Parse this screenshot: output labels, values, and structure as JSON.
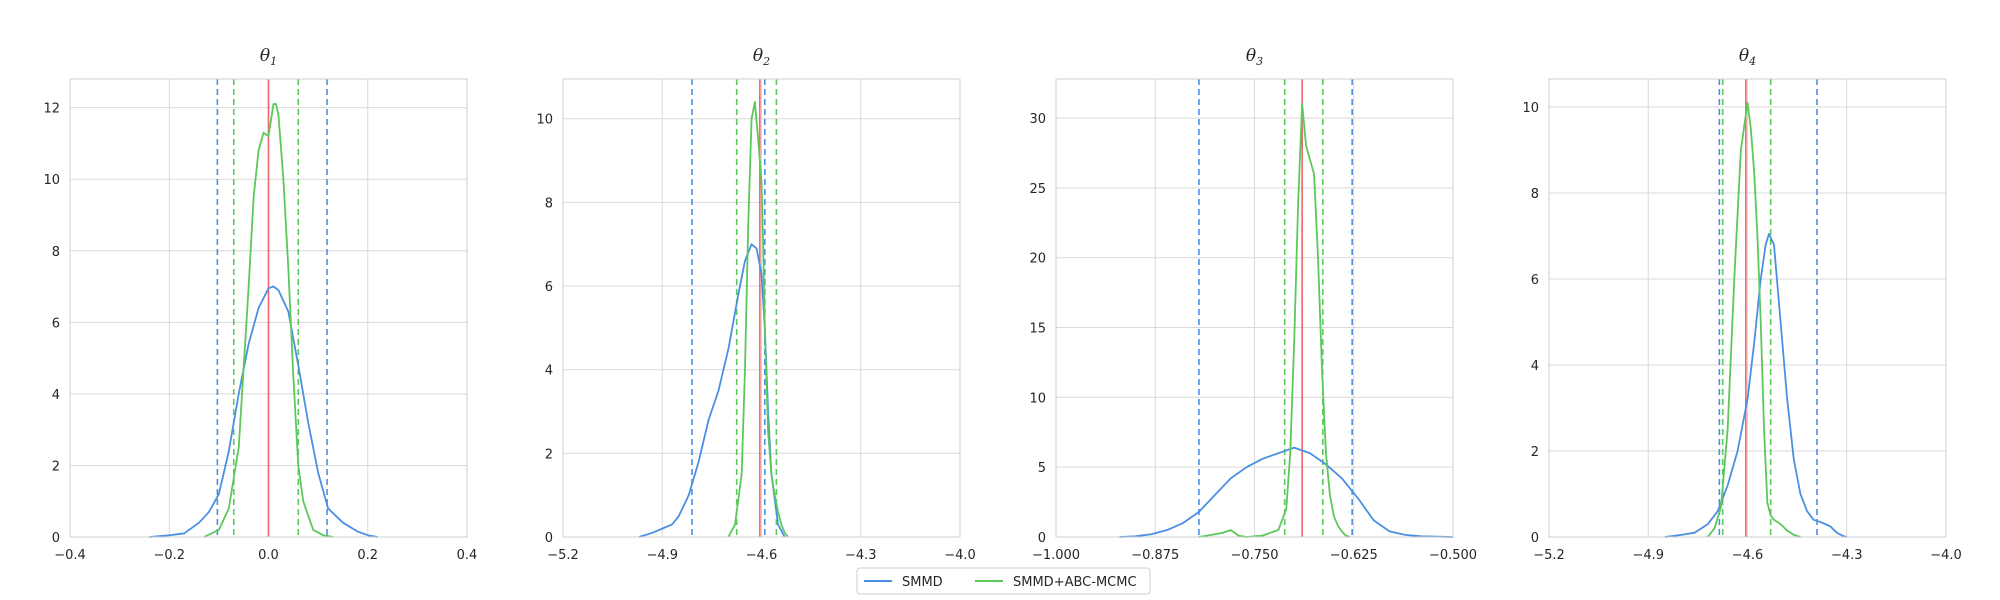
{
  "chart_data": [
    {
      "type": "line",
      "title": "θ1",
      "title_base": "θ",
      "title_sub": "1",
      "xlim": [
        -0.4,
        0.4
      ],
      "ylim": [
        0,
        12.8
      ],
      "xticks": [
        -0.4,
        -0.2,
        0.0,
        0.2,
        0.4
      ],
      "xtick_labels": [
        "−0.4",
        "−0.2",
        "0.0",
        "0.2",
        "0.4"
      ],
      "yticks": [
        0,
        2,
        4,
        6,
        8,
        10,
        12
      ],
      "ytick_labels": [
        "0",
        "2",
        "4",
        "6",
        "8",
        "10",
        "12"
      ],
      "grid": true,
      "series": [
        {
          "name": "SMMD",
          "color": "#4a90e2",
          "x": [
            -0.24,
            -0.2,
            -0.17,
            -0.14,
            -0.12,
            -0.1,
            -0.08,
            -0.06,
            -0.04,
            -0.02,
            0.0,
            0.01,
            0.02,
            0.04,
            0.06,
            0.08,
            0.1,
            0.12,
            0.15,
            0.18,
            0.2,
            0.22
          ],
          "y": [
            0.0,
            0.05,
            0.1,
            0.4,
            0.7,
            1.2,
            2.4,
            4.0,
            5.4,
            6.4,
            6.95,
            7.0,
            6.9,
            6.3,
            4.8,
            3.2,
            1.8,
            0.8,
            0.4,
            0.15,
            0.05,
            0.0
          ]
        },
        {
          "name": "SMMD+ABC-MCMC",
          "color": "#5cc85c",
          "x": [
            -0.13,
            -0.1,
            -0.08,
            -0.06,
            -0.04,
            -0.03,
            -0.02,
            -0.01,
            0.0,
            0.01,
            0.015,
            0.02,
            0.03,
            0.04,
            0.05,
            0.06,
            0.07,
            0.09,
            0.11,
            0.13
          ],
          "y": [
            0.0,
            0.2,
            0.8,
            2.5,
            7.0,
            9.5,
            10.8,
            11.3,
            11.2,
            12.1,
            12.1,
            11.8,
            10.0,
            7.5,
            4.5,
            2.0,
            1.0,
            0.2,
            0.05,
            0.0
          ]
        }
      ],
      "vlines": [
        {
          "x": 0.0,
          "color": "#f0656c",
          "style": "solid"
        },
        {
          "x": -0.103,
          "color": "#4a90e2",
          "style": "dashed"
        },
        {
          "x": 0.118,
          "color": "#4a90e2",
          "style": "dashed"
        },
        {
          "x": -0.07,
          "color": "#5cc85c",
          "style": "dashed"
        },
        {
          "x": 0.06,
          "color": "#5cc85c",
          "style": "dashed"
        }
      ]
    },
    {
      "type": "line",
      "title": "θ2",
      "title_base": "θ",
      "title_sub": "2",
      "xlim": [
        -5.2,
        -4.0
      ],
      "ylim": [
        0,
        10.95
      ],
      "xticks": [
        -5.2,
        -4.9,
        -4.6,
        -4.3,
        -4.0
      ],
      "xtick_labels": [
        "−5.2",
        "−4.9",
        "−4.6",
        "−4.3",
        "−4.0"
      ],
      "yticks": [
        0,
        2,
        4,
        6,
        8,
        10
      ],
      "ytick_labels": [
        "0",
        "2",
        "4",
        "6",
        "8",
        "10"
      ],
      "grid": true,
      "series": [
        {
          "name": "SMMD",
          "color": "#4a90e2",
          "x": [
            -4.97,
            -4.93,
            -4.9,
            -4.87,
            -4.85,
            -4.82,
            -4.79,
            -4.76,
            -4.73,
            -4.7,
            -4.67,
            -4.65,
            -4.63,
            -4.615,
            -4.6,
            -4.59,
            -4.58,
            -4.57,
            -4.55,
            -4.53
          ],
          "y": [
            0.0,
            0.1,
            0.2,
            0.3,
            0.5,
            1.0,
            1.8,
            2.8,
            3.5,
            4.5,
            5.8,
            6.6,
            7.0,
            6.9,
            6.3,
            5.0,
            3.0,
            1.5,
            0.3,
            0.0
          ]
        },
        {
          "name": "SMMD+ABC-MCMC",
          "color": "#5cc85c",
          "x": [
            -4.7,
            -4.68,
            -4.66,
            -4.65,
            -4.64,
            -4.63,
            -4.62,
            -4.61,
            -4.6,
            -4.595,
            -4.59,
            -4.58,
            -4.57,
            -4.56,
            -4.55,
            -4.54,
            -4.53,
            -4.52
          ],
          "y": [
            0.0,
            0.3,
            1.5,
            4.0,
            7.5,
            10.0,
            10.4,
            9.5,
            8.5,
            7.0,
            5.0,
            2.5,
            1.5,
            1.0,
            0.6,
            0.3,
            0.1,
            0.0
          ]
        }
      ],
      "vlines": [
        {
          "x": -4.605,
          "color": "#f0656c",
          "style": "solid"
        },
        {
          "x": -4.81,
          "color": "#4a90e2",
          "style": "dashed"
        },
        {
          "x": -4.59,
          "color": "#4a90e2",
          "style": "dashed"
        },
        {
          "x": -4.675,
          "color": "#5cc85c",
          "style": "dashed"
        },
        {
          "x": -4.555,
          "color": "#5cc85c",
          "style": "dashed"
        }
      ]
    },
    {
      "type": "line",
      "title": "θ3",
      "title_base": "θ",
      "title_sub": "3",
      "xlim": [
        -1.0,
        -0.5
      ],
      "ylim": [
        0,
        32.8
      ],
      "xticks": [
        -1.0,
        -0.875,
        -0.75,
        -0.625,
        -0.5
      ],
      "xtick_labels": [
        "−1.000",
        "−0.875",
        "−0.750",
        "−0.625",
        "−0.500"
      ],
      "yticks": [
        0,
        5,
        10,
        15,
        20,
        25,
        30
      ],
      "ytick_labels": [
        "0",
        "5",
        "10",
        "15",
        "20",
        "25",
        "30"
      ],
      "grid": true,
      "series": [
        {
          "name": "SMMD",
          "color": "#4a90e2",
          "x": [
            -0.92,
            -0.9,
            -0.88,
            -0.86,
            -0.84,
            -0.82,
            -0.8,
            -0.78,
            -0.76,
            -0.74,
            -0.72,
            -0.7,
            -0.68,
            -0.66,
            -0.64,
            -0.62,
            -0.6,
            -0.58,
            -0.56,
            -0.54,
            -0.5
          ],
          "y": [
            0.0,
            0.05,
            0.2,
            0.5,
            1.0,
            1.8,
            3.0,
            4.2,
            5.0,
            5.6,
            6.0,
            6.4,
            6.0,
            5.2,
            4.2,
            2.8,
            1.2,
            0.4,
            0.15,
            0.05,
            0.0
          ]
        },
        {
          "name": "SMMD+ABC-MCMC",
          "color": "#5cc85c",
          "x": [
            -0.82,
            -0.8,
            -0.79,
            -0.78,
            -0.77,
            -0.76,
            -0.74,
            -0.72,
            -0.71,
            -0.705,
            -0.7,
            -0.695,
            -0.69,
            -0.685,
            -0.68,
            -0.675,
            -0.67,
            -0.665,
            -0.66,
            -0.655,
            -0.65,
            -0.645,
            -0.64,
            -0.635,
            -0.63
          ],
          "y": [
            0.0,
            0.2,
            0.3,
            0.5,
            0.1,
            0.0,
            0.1,
            0.5,
            2.0,
            6.0,
            14.0,
            24.0,
            31.0,
            28.0,
            27.0,
            26.0,
            20.0,
            12.0,
            6.0,
            3.0,
            1.5,
            0.8,
            0.4,
            0.1,
            0.0
          ]
        }
      ],
      "vlines": [
        {
          "x": -0.69,
          "color": "#f0656c",
          "style": "solid"
        },
        {
          "x": -0.82,
          "color": "#4a90e2",
          "style": "dashed"
        },
        {
          "x": -0.627,
          "color": "#4a90e2",
          "style": "dashed"
        },
        {
          "x": -0.712,
          "color": "#5cc85c",
          "style": "dashed"
        },
        {
          "x": -0.664,
          "color": "#5cc85c",
          "style": "dashed"
        }
      ]
    },
    {
      "type": "line",
      "title": "θ4",
      "title_base": "θ",
      "title_sub": "4",
      "xlim": [
        -5.2,
        -4.0
      ],
      "ylim": [
        0,
        10.65
      ],
      "xticks": [
        -5.2,
        -4.9,
        -4.6,
        -4.3,
        -4.0
      ],
      "xtick_labels": [
        "−5.2",
        "−4.9",
        "−4.6",
        "−4.3",
        "−4.0"
      ],
      "yticks": [
        0,
        2,
        4,
        6,
        8,
        10
      ],
      "ytick_labels": [
        "0",
        "2",
        "4",
        "6",
        "8",
        "10"
      ],
      "grid": true,
      "series": [
        {
          "name": "SMMD",
          "color": "#4a90e2",
          "x": [
            -4.85,
            -4.8,
            -4.76,
            -4.72,
            -4.69,
            -4.66,
            -4.63,
            -4.6,
            -4.58,
            -4.56,
            -4.545,
            -4.535,
            -4.52,
            -4.5,
            -4.48,
            -4.46,
            -4.44,
            -4.42,
            -4.4,
            -4.38,
            -4.35,
            -4.33,
            -4.31,
            -4.3
          ],
          "y": [
            0.0,
            0.05,
            0.1,
            0.3,
            0.6,
            1.2,
            2.0,
            3.2,
            4.5,
            6.0,
            6.8,
            7.05,
            6.8,
            5.0,
            3.2,
            1.8,
            1.0,
            0.6,
            0.4,
            0.35,
            0.25,
            0.1,
            0.02,
            0.0
          ]
        },
        {
          "name": "SMMD+ABC-MCMC",
          "color": "#5cc85c",
          "x": [
            -4.72,
            -4.7,
            -4.68,
            -4.66,
            -4.64,
            -4.62,
            -4.6,
            -4.59,
            -4.58,
            -4.57,
            -4.56,
            -4.55,
            -4.54,
            -4.53,
            -4.52,
            -4.5,
            -4.48,
            -4.46,
            -4.44
          ],
          "y": [
            0.0,
            0.2,
            0.7,
            2.5,
            6.0,
            9.0,
            10.1,
            9.5,
            8.5,
            7.0,
            5.0,
            2.5,
            0.8,
            0.5,
            0.4,
            0.3,
            0.15,
            0.05,
            0.0
          ]
        }
      ],
      "vlines": [
        {
          "x": -4.605,
          "color": "#f0656c",
          "style": "solid"
        },
        {
          "x": -4.685,
          "color": "#4a90e2",
          "style": "dashed"
        },
        {
          "x": -4.39,
          "color": "#4a90e2",
          "style": "dashed"
        },
        {
          "x": -4.675,
          "color": "#5cc85c",
          "style": "dashed"
        },
        {
          "x": -4.53,
          "color": "#5cc85c",
          "style": "dashed"
        }
      ]
    }
  ],
  "legend": {
    "placement": "bottom-center",
    "entries": [
      {
        "label": "SMMD",
        "color": "#4a90e2"
      },
      {
        "label": "SMMD+ABC-MCMC",
        "color": "#5cc85c"
      }
    ]
  }
}
